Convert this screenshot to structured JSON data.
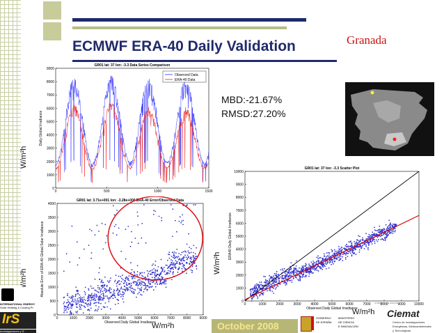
{
  "slide": {
    "title": "ECMWF ERA-40 Daily Validation",
    "location": "Granada",
    "mbd": "MBD:-21.67%",
    "rmsd": "RMSD:27.20%",
    "date": "October 2008",
    "unit_labels": [
      "W/m²h",
      "W/m²h",
      "W/m²h",
      "W/m²h",
      "W/m²h"
    ]
  },
  "logos": {
    "left_logo_text": "IrS",
    "left_logo_caption": "Investigaciones y R",
    "left_org": "INTERNATIONAL ENERGY",
    "left_org_sub": "Solar Heating & Cooling Pr",
    "ministry_line1": "GOBIERNO",
    "ministry_line2": "DE ESPAÑA",
    "ministry_line3": "MINISTERIO",
    "ministry_line4": "DE CIENCIA",
    "ministry_line5": "E INNOVACIÓN",
    "ciemat": "Ciemat",
    "ciemat_sub1": "Centro de Investigaciones",
    "ciemat_sub2": "Energéticas, Medioambientales",
    "ciemat_sub3": "y Tecnológicas",
    "gobierno_short": "GOBIERNO DE ESPAÑA"
  },
  "chart_data": [
    {
      "type": "line",
      "title": "GR01 lat: 37 lon: -3.3 Data Series Comparison",
      "xlabel": "",
      "ylabel": "Daily Global Irradiance",
      "xlim": [
        0,
        1500
      ],
      "ylim": [
        0,
        9000
      ],
      "x_ticks": [
        0,
        500,
        1000,
        1500
      ],
      "y_ticks": [
        0,
        1000,
        2000,
        3000,
        4000,
        5000,
        6000,
        7000,
        8000,
        9000
      ],
      "legend": "top-right",
      "series": [
        {
          "name": "Observed Data",
          "color": "#3333ff",
          "peaks": [
            8300,
            8500,
            8300,
            8200
          ],
          "troughs": [
            1800,
            2000,
            2000
          ]
        },
        {
          "name": "ERA-40 Data",
          "color": "#ee2222",
          "peaks": [
            6300,
            6500,
            6100,
            6100
          ],
          "troughs": [
            1500,
            1600,
            1600
          ]
        }
      ]
    },
    {
      "type": "scatter",
      "title": "GR01 lat: 3.71e+001 lon: -3.28e+000 ERA-40 Error/Observed Data",
      "xlabel": "Observed Daily Global Irradiance",
      "ylabel": "Absolute Error of ERA-40 Global Solar Irradiance",
      "xlim": [
        0,
        9000
      ],
      "ylim": [
        0,
        4000
      ],
      "x_ticks": [
        0,
        1000,
        2000,
        3000,
        4000,
        5000,
        6000,
        7000,
        8000,
        9000
      ],
      "y_ticks": [
        0,
        500,
        1000,
        1500,
        2000,
        2500,
        3000,
        3500,
        4000
      ],
      "annotation": "red circle around high-error points",
      "color": "#3333cc"
    },
    {
      "type": "scatter",
      "title": "GR01 lat: 37 lon: -3.3 Scatter Plot",
      "xlabel": "Observed Daily Global Irradiance",
      "ylabel": "ERA40 Daily Global Irradiance",
      "xlim": [
        0,
        10000
      ],
      "ylim": [
        0,
        10000
      ],
      "x_ticks": [
        0,
        1000,
        2000,
        3000,
        4000,
        5000,
        6000,
        7000,
        8000,
        9000,
        10000
      ],
      "y_ticks": [
        0,
        1000,
        2000,
        3000,
        4000,
        5000,
        6000,
        7000,
        8000,
        9000,
        10000
      ],
      "identity_line": true,
      "fit_line": {
        "slope": 0.65,
        "intercept": 100,
        "color": "#dd0000"
      },
      "color": "#3333cc"
    }
  ]
}
